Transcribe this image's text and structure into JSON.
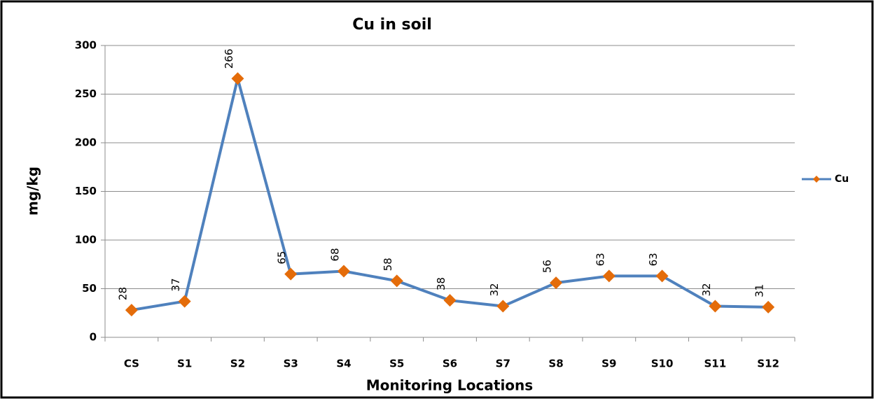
{
  "chart_data": {
    "type": "line",
    "title": "Cu in soil",
    "x_label": "Monitoring Locations",
    "y_label": "mg/kg",
    "categories": [
      "CS",
      "S1",
      "S2",
      "S3",
      "S4",
      "S5",
      "S6",
      "S7",
      "S8",
      "S9",
      "S10",
      "S11",
      "S12"
    ],
    "series": [
      {
        "name": "Cu",
        "color": "#4f81bd",
        "marker_color": "#e46c0a",
        "values": [
          28,
          37,
          266,
          65,
          68,
          58,
          38,
          32,
          56,
          63,
          63,
          32,
          31
        ]
      }
    ],
    "ylim": [
      0,
      300
    ],
    "yticks": [
      0,
      50,
      100,
      150,
      200,
      250,
      300
    ],
    "grid": true,
    "legend": "right"
  }
}
